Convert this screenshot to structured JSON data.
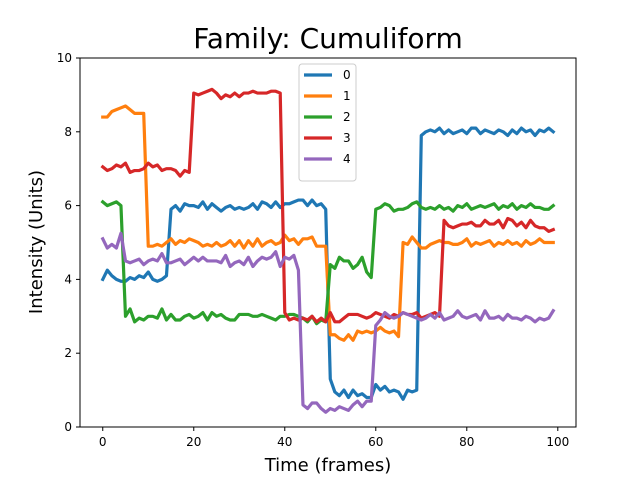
{
  "chart_data": {
    "type": "line",
    "title": "Family: Cumuliform",
    "xlabel": "Time (frames)",
    "ylabel": "Intensity (Units)",
    "xlim": [
      -5,
      104
    ],
    "ylim": [
      0,
      10
    ],
    "xticks": [
      0,
      20,
      40,
      60,
      80,
      100
    ],
    "yticks": [
      0,
      2,
      4,
      6,
      8,
      10
    ],
    "grid": false,
    "legend_position": "top-center",
    "series": [
      {
        "name": "0",
        "color": "#1f77b4",
        "x": [
          0,
          1,
          2,
          3,
          4,
          5,
          6,
          7,
          8,
          9,
          10,
          11,
          12,
          13,
          14,
          15,
          16,
          17,
          18,
          19,
          20,
          21,
          22,
          23,
          24,
          25,
          26,
          27,
          28,
          29,
          30,
          31,
          32,
          33,
          34,
          35,
          36,
          37,
          38,
          39,
          40,
          41,
          42,
          43,
          44,
          45,
          46,
          47,
          48,
          49,
          50,
          51,
          52,
          53,
          54,
          55,
          56,
          57,
          58,
          59,
          60,
          61,
          62,
          63,
          64,
          65,
          66,
          67,
          68,
          69,
          70,
          71,
          72,
          73,
          74,
          75,
          76,
          77,
          78,
          79,
          80,
          81,
          82,
          83,
          84,
          85,
          86,
          87,
          88,
          89,
          90,
          91,
          92,
          93,
          94,
          95,
          96,
          97,
          98,
          99
        ],
        "values": [
          4.0,
          4.25,
          4.1,
          4.0,
          3.95,
          3.95,
          4.05,
          4.0,
          4.1,
          4.05,
          4.2,
          4.0,
          3.95,
          4.0,
          4.1,
          5.9,
          6.0,
          5.85,
          6.05,
          6.0,
          6.0,
          5.95,
          6.1,
          5.9,
          6.05,
          5.95,
          5.85,
          5.95,
          6.0,
          5.9,
          5.95,
          5.9,
          5.95,
          6.05,
          5.9,
          6.1,
          6.05,
          5.95,
          6.1,
          5.95,
          6.05,
          6.05,
          6.1,
          6.15,
          6.15,
          6.0,
          6.15,
          6.0,
          6.05,
          5.9,
          1.3,
          0.95,
          0.85,
          1.0,
          0.8,
          1.0,
          0.85,
          0.9,
          0.8,
          0.8,
          1.15,
          1.0,
          1.1,
          0.95,
          1.0,
          0.95,
          0.75,
          1.0,
          0.95,
          1.0,
          7.9,
          8.0,
          8.05,
          8.0,
          8.1,
          7.95,
          8.05,
          7.95,
          8.0,
          8.05,
          7.95,
          8.1,
          8.1,
          7.95,
          8.05,
          8.0,
          7.95,
          8.05,
          8.0,
          7.9,
          8.05,
          7.95,
          8.1,
          8.0,
          8.05,
          7.9,
          8.05,
          8.0,
          8.1,
          8.0
        ]
      },
      {
        "name": "1",
        "color": "#ff7f0e",
        "x": [
          0,
          1,
          2,
          3,
          4,
          5,
          6,
          7,
          8,
          9,
          10,
          11,
          12,
          13,
          14,
          15,
          16,
          17,
          18,
          19,
          20,
          21,
          22,
          23,
          24,
          25,
          26,
          27,
          28,
          29,
          30,
          31,
          32,
          33,
          34,
          35,
          36,
          37,
          38,
          39,
          40,
          41,
          42,
          43,
          44,
          45,
          46,
          47,
          48,
          49,
          50,
          51,
          52,
          53,
          54,
          55,
          56,
          57,
          58,
          59,
          60,
          61,
          62,
          63,
          64,
          65,
          66,
          67,
          68,
          69,
          70,
          71,
          72,
          73,
          74,
          75,
          76,
          77,
          78,
          79,
          80,
          81,
          82,
          83,
          84,
          85,
          86,
          87,
          88,
          89,
          90,
          91,
          92,
          93,
          94,
          95,
          96,
          97,
          98,
          99
        ],
        "values": [
          8.4,
          8.4,
          8.55,
          8.6,
          8.65,
          8.7,
          8.6,
          8.5,
          8.5,
          8.5,
          4.9,
          4.9,
          4.95,
          4.9,
          5.0,
          5.1,
          4.95,
          5.05,
          5.0,
          5.1,
          5.05,
          5.0,
          4.9,
          4.95,
          4.9,
          5.0,
          4.9,
          4.95,
          5.05,
          4.9,
          5.05,
          4.85,
          5.05,
          4.9,
          5.1,
          4.9,
          5.0,
          5.05,
          4.95,
          5.0,
          5.2,
          5.05,
          5.1,
          4.95,
          5.1,
          5.1,
          5.15,
          4.9,
          4.9,
          4.9,
          2.5,
          2.5,
          2.4,
          2.35,
          2.5,
          2.35,
          2.6,
          2.55,
          2.6,
          2.55,
          2.6,
          2.7,
          2.6,
          2.55,
          2.6,
          2.45,
          5.0,
          4.95,
          5.15,
          5.0,
          4.85,
          4.85,
          4.95,
          5.0,
          5.05,
          5.0,
          5.0,
          4.95,
          4.95,
          5.0,
          5.1,
          4.9,
          5.0,
          4.95,
          5.0,
          5.05,
          4.9,
          5.0,
          4.95,
          5.05,
          4.95,
          5.0,
          4.9,
          5.05,
          4.95,
          5.0,
          5.1,
          5.0,
          5.0,
          5.0
        ]
      },
      {
        "name": "2",
        "color": "#2ca02c",
        "x": [
          0,
          1,
          2,
          3,
          4,
          5,
          6,
          7,
          8,
          9,
          10,
          11,
          12,
          13,
          14,
          15,
          16,
          17,
          18,
          19,
          20,
          21,
          22,
          23,
          24,
          25,
          26,
          27,
          28,
          29,
          30,
          31,
          32,
          33,
          34,
          35,
          36,
          37,
          38,
          39,
          40,
          41,
          42,
          43,
          44,
          45,
          46,
          47,
          48,
          49,
          50,
          51,
          52,
          53,
          54,
          55,
          56,
          57,
          58,
          59,
          60,
          61,
          62,
          63,
          64,
          65,
          66,
          67,
          68,
          69,
          70,
          71,
          72,
          73,
          74,
          75,
          76,
          77,
          78,
          79,
          80,
          81,
          82,
          83,
          84,
          85,
          86,
          87,
          88,
          89,
          90,
          91,
          92,
          93,
          94,
          95,
          96,
          97,
          98,
          99
        ],
        "values": [
          6.1,
          6.0,
          6.05,
          6.1,
          6.0,
          3.0,
          3.2,
          2.85,
          2.95,
          2.9,
          3.0,
          3.0,
          2.95,
          3.2,
          2.9,
          3.05,
          2.9,
          2.9,
          3.0,
          3.05,
          2.95,
          3.0,
          3.1,
          2.9,
          3.1,
          3.0,
          3.05,
          2.95,
          2.9,
          2.9,
          3.05,
          3.05,
          3.05,
          3.0,
          3.0,
          3.05,
          3.0,
          2.95,
          2.9,
          3.0,
          3.0,
          3.05,
          3.05,
          3.0,
          2.95,
          2.85,
          3.0,
          2.8,
          2.9,
          2.85,
          4.4,
          4.3,
          4.6,
          4.5,
          4.5,
          4.3,
          4.4,
          4.6,
          4.2,
          4.05,
          5.9,
          5.95,
          6.05,
          6.0,
          5.85,
          5.9,
          5.9,
          5.95,
          6.05,
          6.1,
          5.95,
          5.9,
          5.95,
          5.9,
          6.0,
          5.9,
          5.95,
          5.85,
          6.0,
          5.95,
          6.05,
          5.9,
          5.95,
          6.0,
          5.95,
          6.0,
          6.05,
          5.9,
          6.0,
          5.95,
          6.05,
          5.9,
          6.0,
          5.95,
          6.05,
          5.95,
          5.95,
          5.9,
          5.9,
          6.0
        ]
      },
      {
        "name": "3",
        "color": "#d62728",
        "x": [
          0,
          1,
          2,
          3,
          4,
          5,
          6,
          7,
          8,
          9,
          10,
          11,
          12,
          13,
          14,
          15,
          16,
          17,
          18,
          19,
          20,
          21,
          22,
          23,
          24,
          25,
          26,
          27,
          28,
          29,
          30,
          31,
          32,
          33,
          34,
          35,
          36,
          37,
          38,
          39,
          40,
          41,
          42,
          43,
          44,
          45,
          46,
          47,
          48,
          49,
          50,
          51,
          52,
          53,
          54,
          55,
          56,
          57,
          58,
          59,
          60,
          61,
          62,
          63,
          64,
          65,
          66,
          67,
          68,
          69,
          70,
          71,
          72,
          73,
          74,
          75,
          76,
          77,
          78,
          79,
          80,
          81,
          82,
          83,
          84,
          85,
          86,
          87,
          88,
          89,
          90,
          91,
          92,
          93,
          94,
          95,
          96,
          97,
          98,
          99
        ],
        "values": [
          7.05,
          6.95,
          7.0,
          7.1,
          7.05,
          7.15,
          6.9,
          6.95,
          6.95,
          7.0,
          7.15,
          7.05,
          7.1,
          6.95,
          7.0,
          7.0,
          6.95,
          6.8,
          6.95,
          6.9,
          9.05,
          9.0,
          9.05,
          9.1,
          9.15,
          9.05,
          8.9,
          9.0,
          8.95,
          9.05,
          8.95,
          9.05,
          9.05,
          9.1,
          9.05,
          9.05,
          9.05,
          9.1,
          9.1,
          9.05,
          3.1,
          2.9,
          2.95,
          2.9,
          2.95,
          2.9,
          3.0,
          2.85,
          2.95,
          2.85,
          3.1,
          2.85,
          2.85,
          2.95,
          3.05,
          3.05,
          3.05,
          3.0,
          2.95,
          3.0,
          3.1,
          3.05,
          3.0,
          2.95,
          3.05,
          3.0,
          3.1,
          3.05,
          3.05,
          3.1,
          2.95,
          3.0,
          3.05,
          3.1,
          3.0,
          5.6,
          5.45,
          5.4,
          5.45,
          5.5,
          5.5,
          5.55,
          5.45,
          5.45,
          5.6,
          5.5,
          5.5,
          5.6,
          5.4,
          5.65,
          5.6,
          5.45,
          5.55,
          5.4,
          5.6,
          5.45,
          5.4,
          5.4,
          5.3,
          5.35
        ]
      },
      {
        "name": "4",
        "color": "#9467bd",
        "x": [
          0,
          1,
          2,
          3,
          4,
          5,
          6,
          7,
          8,
          9,
          10,
          11,
          12,
          13,
          14,
          15,
          16,
          17,
          18,
          19,
          20,
          21,
          22,
          23,
          24,
          25,
          26,
          27,
          28,
          29,
          30,
          31,
          32,
          33,
          34,
          35,
          36,
          37,
          38,
          39,
          40,
          41,
          42,
          43,
          44,
          45,
          46,
          47,
          48,
          49,
          50,
          51,
          52,
          53,
          54,
          55,
          56,
          57,
          58,
          59,
          60,
          61,
          62,
          63,
          64,
          65,
          66,
          67,
          68,
          69,
          70,
          71,
          72,
          73,
          74,
          75,
          76,
          77,
          78,
          79,
          80,
          81,
          82,
          83,
          84,
          85,
          86,
          87,
          88,
          89,
          90,
          91,
          92,
          93,
          94,
          95,
          96,
          97,
          98,
          99
        ],
        "values": [
          5.1,
          4.85,
          4.95,
          4.85,
          5.25,
          4.5,
          4.45,
          4.5,
          4.55,
          4.4,
          4.5,
          4.55,
          4.5,
          4.7,
          4.45,
          4.45,
          4.5,
          4.55,
          4.4,
          4.5,
          4.6,
          4.5,
          4.6,
          4.5,
          4.5,
          4.5,
          4.45,
          4.65,
          4.35,
          4.45,
          4.5,
          4.4,
          4.6,
          4.35,
          4.5,
          4.6,
          4.55,
          4.6,
          4.75,
          4.35,
          4.6,
          4.55,
          4.65,
          4.25,
          0.6,
          0.5,
          0.65,
          0.65,
          0.5,
          0.4,
          0.5,
          0.45,
          0.55,
          0.5,
          0.45,
          0.6,
          0.7,
          0.55,
          0.7,
          0.7,
          2.75,
          2.9,
          3.1,
          3.0,
          2.95,
          3.0,
          3.1,
          3.05,
          3.0,
          2.95,
          2.9,
          2.95,
          3.05,
          2.95,
          3.1,
          2.9,
          2.95,
          3.0,
          3.15,
          3.0,
          2.95,
          3.0,
          3.05,
          2.9,
          3.15,
          2.95,
          2.95,
          3.0,
          2.9,
          3.05,
          2.95,
          2.95,
          2.9,
          3.0,
          2.95,
          2.85,
          2.95,
          2.9,
          2.95,
          3.15
        ]
      }
    ]
  }
}
